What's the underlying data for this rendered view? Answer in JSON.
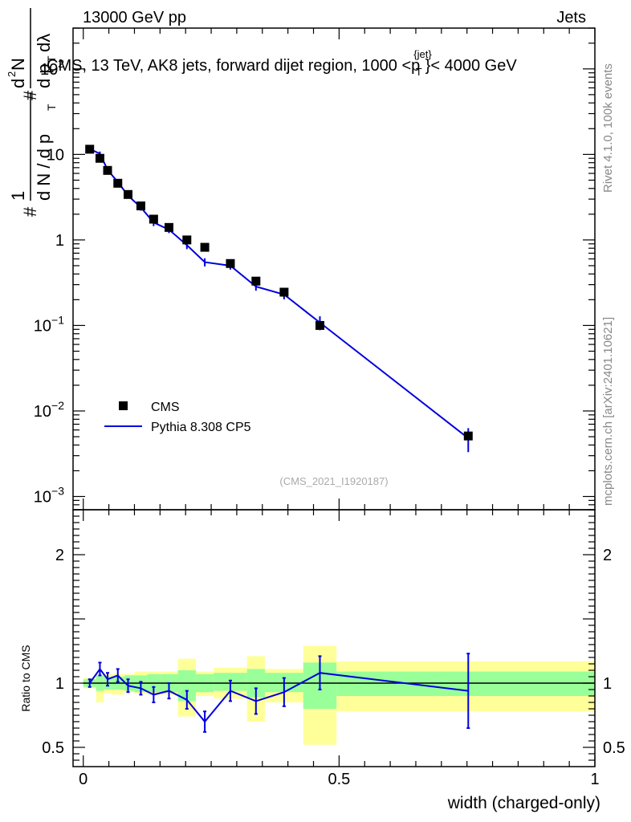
{
  "header": {
    "left": "13000 GeV pp",
    "right": "Jets"
  },
  "side_labels": {
    "rivet": "Rivet 4.1.0,  100k events",
    "mcplots": "mcplots.cern.ch [arXiv:2401.10621]"
  },
  "analysis_id": "(CMS_2021_I1920187)",
  "colors": {
    "mc": "#0000dd",
    "data": "#000000",
    "band_inner": "#99ff99",
    "band_outer": "#ffff99"
  },
  "chart_data": [
    {
      "type": "scatter",
      "title": "CMS, 13 TeV, AK8 jets, forward dijet region, 1000 < pT(jet) < 4000 GeV",
      "title_parts": {
        "main": "CMS, 13 TeV, AK8 jets, forward dijet region, 1000 <p",
        "sup": "{jet}",
        "sub": "T",
        "end": "}< 4000 GeV"
      },
      "ylabel": "1/(dN/dpT) d²N/(dpT dλ)",
      "ylabel_parts": {
        "hash": "#",
        "one": "1",
        "frac_den": "d N / d p",
        "t": "T",
        "d2n_d": "d",
        "d2n_2": "2",
        "d2n_n": "N",
        "den_dp": "d p",
        "den_dl": "dλ"
      },
      "yscale": "log",
      "ylim": [
        0.0007,
        300
      ],
      "yticks": [
        {
          "v": 0.001,
          "m": "10",
          "e": "−3"
        },
        {
          "v": 0.01,
          "m": "10",
          "e": "−2"
        },
        {
          "v": 0.1,
          "m": "10",
          "e": "−1"
        },
        {
          "v": 1,
          "m": "1",
          "e": ""
        },
        {
          "v": 10,
          "m": "10",
          "e": ""
        },
        {
          "v": 100,
          "m": "10",
          "e": "2"
        }
      ],
      "xlim": [
        -0.02,
        1.0
      ],
      "legend": {
        "position": "lower-left",
        "entries": [
          {
            "label": "CMS",
            "kind": "marker"
          },
          {
            "label": "Pythia 8.308 CP5",
            "kind": "line"
          }
        ]
      },
      "data_series": {
        "name": "CMS",
        "points": [
          {
            "x": 0.0125,
            "y": 11.5
          },
          {
            "x": 0.0325,
            "y": 9.0
          },
          {
            "x": 0.0475,
            "y": 6.5
          },
          {
            "x": 0.0675,
            "y": 4.6
          },
          {
            "x": 0.0875,
            "y": 3.4
          },
          {
            "x": 0.1125,
            "y": 2.5
          },
          {
            "x": 0.1375,
            "y": 1.75
          },
          {
            "x": 0.1675,
            "y": 1.4
          },
          {
            "x": 0.2025,
            "y": 1.0
          },
          {
            "x": 0.2375,
            "y": 0.82
          },
          {
            "x": 0.2875,
            "y": 0.53
          },
          {
            "x": 0.3375,
            "y": 0.33
          },
          {
            "x": 0.3925,
            "y": 0.245
          },
          {
            "x": 0.4625,
            "y": 0.1
          },
          {
            "x": 0.7525,
            "y": 0.0051
          }
        ]
      },
      "mc_series": {
        "name": "Pythia 8.308 CP5",
        "points": [
          {
            "x": 0.0125,
            "y": 11.6,
            "yerr": 0.3
          },
          {
            "x": 0.0325,
            "y": 10.2,
            "yerr": 0.6
          },
          {
            "x": 0.0475,
            "y": 6.6,
            "yerr": 0.5
          },
          {
            "x": 0.0675,
            "y": 4.75,
            "yerr": 0.35
          },
          {
            "x": 0.0875,
            "y": 3.3,
            "yerr": 0.25
          },
          {
            "x": 0.1125,
            "y": 2.4,
            "yerr": 0.2
          },
          {
            "x": 0.1375,
            "y": 1.6,
            "yerr": 0.15
          },
          {
            "x": 0.1675,
            "y": 1.32,
            "yerr": 0.12
          },
          {
            "x": 0.2025,
            "y": 0.87,
            "yerr": 0.09
          },
          {
            "x": 0.2375,
            "y": 0.55,
            "yerr": 0.06
          },
          {
            "x": 0.2875,
            "y": 0.5,
            "yerr": 0.05
          },
          {
            "x": 0.3375,
            "y": 0.285,
            "yerr": 0.03
          },
          {
            "x": 0.3925,
            "y": 0.23,
            "yerr": 0.028
          },
          {
            "x": 0.4625,
            "y": 0.108,
            "yerr": 0.02
          },
          {
            "x": 0.7525,
            "y": 0.0048,
            "yerr": 0.0015
          }
        ]
      }
    },
    {
      "type": "line",
      "ylabel": "Ratio to CMS",
      "xlabel": "width (charged-only)",
      "xlim": [
        -0.02,
        1.0
      ],
      "ylim": [
        0.35,
        2.35
      ],
      "xticks": [
        {
          "v": 0,
          "l": "0"
        },
        {
          "v": 0.5,
          "l": "0.5"
        },
        {
          "v": 1,
          "l": "1"
        }
      ],
      "yticks": [
        {
          "v": 0.5,
          "l": "0.5"
        },
        {
          "v": 1,
          "l": "1"
        },
        {
          "v": 2,
          "l": "2"
        }
      ],
      "reference": 1.0,
      "bands": [
        {
          "x0": 0.0,
          "x1": 0.025,
          "in_lo": 0.97,
          "in_hi": 1.03,
          "out_lo": 0.96,
          "out_hi": 1.04
        },
        {
          "x0": 0.025,
          "x1": 0.04,
          "in_lo": 0.94,
          "in_hi": 1.06,
          "out_lo": 0.85,
          "out_hi": 1.06
        },
        {
          "x0": 0.04,
          "x1": 0.055,
          "in_lo": 0.95,
          "in_hi": 1.05,
          "out_lo": 0.92,
          "out_hi": 1.07
        },
        {
          "x0": 0.055,
          "x1": 0.08,
          "in_lo": 0.95,
          "in_hi": 1.05,
          "out_lo": 0.91,
          "out_hi": 1.07
        },
        {
          "x0": 0.08,
          "x1": 0.1,
          "in_lo": 0.94,
          "in_hi": 1.06,
          "out_lo": 0.93,
          "out_hi": 1.07
        },
        {
          "x0": 0.1,
          "x1": 0.125,
          "in_lo": 0.93,
          "in_hi": 1.06,
          "out_lo": 0.92,
          "out_hi": 1.09
        },
        {
          "x0": 0.125,
          "x1": 0.15,
          "in_lo": 0.93,
          "in_hi": 1.07,
          "out_lo": 0.91,
          "out_hi": 1.09
        },
        {
          "x0": 0.15,
          "x1": 0.185,
          "in_lo": 0.93,
          "in_hi": 1.07,
          "out_lo": 0.91,
          "out_hi": 1.09
        },
        {
          "x0": 0.185,
          "x1": 0.22,
          "in_lo": 0.86,
          "in_hi": 1.1,
          "out_lo": 0.74,
          "out_hi": 1.19
        },
        {
          "x0": 0.22,
          "x1": 0.255,
          "in_lo": 0.93,
          "in_hi": 1.07,
          "out_lo": 0.9,
          "out_hi": 1.09
        },
        {
          "x0": 0.255,
          "x1": 0.32,
          "in_lo": 0.94,
          "in_hi": 1.08,
          "out_lo": 0.88,
          "out_hi": 1.12
        },
        {
          "x0": 0.32,
          "x1": 0.355,
          "in_lo": 0.89,
          "in_hi": 1.11,
          "out_lo": 0.7,
          "out_hi": 1.21
        },
        {
          "x0": 0.355,
          "x1": 0.43,
          "in_lo": 0.93,
          "in_hi": 1.08,
          "out_lo": 0.85,
          "out_hi": 1.11
        },
        {
          "x0": 0.43,
          "x1": 0.495,
          "in_lo": 0.8,
          "in_hi": 1.16,
          "out_lo": 0.52,
          "out_hi": 1.29
        },
        {
          "x0": 0.495,
          "x1": 1.0,
          "in_lo": 0.9,
          "in_hi": 1.09,
          "out_lo": 0.78,
          "out_hi": 1.17
        }
      ],
      "mc_ratio": [
        {
          "x": 0.0125,
          "y": 1.0,
          "yerr": 0.03
        },
        {
          "x": 0.0325,
          "y": 1.11,
          "yerr": 0.05
        },
        {
          "x": 0.0475,
          "y": 1.03,
          "yerr": 0.05
        },
        {
          "x": 0.0675,
          "y": 1.06,
          "yerr": 0.05
        },
        {
          "x": 0.0875,
          "y": 0.98,
          "yerr": 0.05
        },
        {
          "x": 0.1125,
          "y": 0.96,
          "yerr": 0.05
        },
        {
          "x": 0.1375,
          "y": 0.91,
          "yerr": 0.06
        },
        {
          "x": 0.1675,
          "y": 0.94,
          "yerr": 0.06
        },
        {
          "x": 0.2025,
          "y": 0.87,
          "yerr": 0.07
        },
        {
          "x": 0.2375,
          "y": 0.7,
          "yerr": 0.08
        },
        {
          "x": 0.2875,
          "y": 0.94,
          "yerr": 0.08
        },
        {
          "x": 0.3375,
          "y": 0.86,
          "yerr": 0.1
        },
        {
          "x": 0.3925,
          "y": 0.93,
          "yerr": 0.11
        },
        {
          "x": 0.4625,
          "y": 1.08,
          "yerr": 0.13
        },
        {
          "x": 0.7525,
          "y": 0.94,
          "yerr": 0.29
        }
      ]
    }
  ]
}
